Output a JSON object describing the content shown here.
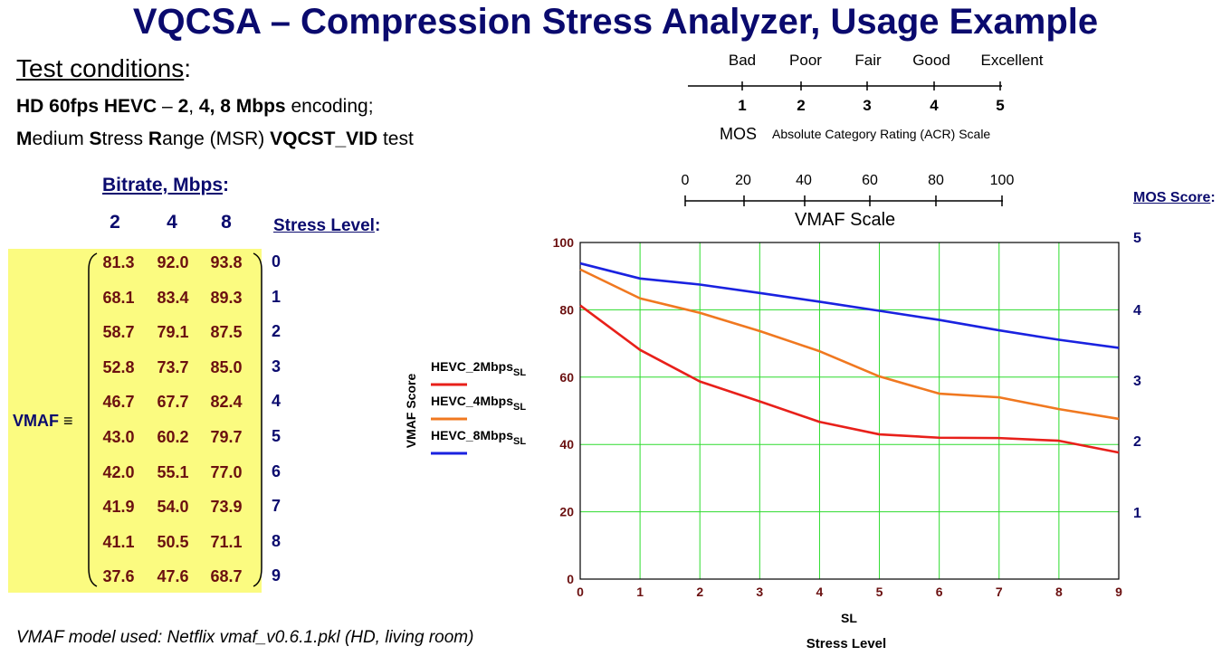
{
  "title": "VQCSA – Compression Stress Analyzer, Usage Example",
  "conditions": {
    "heading": "Test conditions",
    "heading_colon": ":",
    "line1": {
      "a": "HD 60fps HEVC",
      "b": " – ",
      "c": "2",
      "d": ", ",
      "e": "4, 8 Mbps",
      "f": " encoding;"
    },
    "line2": {
      "m": "M",
      "edium": "edium ",
      "s": "S",
      "tress": "tress ",
      "r": "R",
      "ange": "ange (MSR) ",
      "test_bold": "VQCST_VID",
      "test": " test"
    }
  },
  "matrix": {
    "bitrate_label": "Bitrate, Mbps",
    "bitrate_colon": ":",
    "columns": [
      "2",
      "4",
      "8"
    ],
    "stress_label": "Stress Level",
    "stress_colon": ":",
    "row_label": "VMAF",
    "equiv": "≡",
    "stress_levels": [
      "0",
      "1",
      "2",
      "3",
      "4",
      "5",
      "6",
      "7",
      "8",
      "9"
    ],
    "rows": [
      [
        "81.3",
        "92.0",
        "93.8"
      ],
      [
        "68.1",
        "83.4",
        "89.3"
      ],
      [
        "58.7",
        "79.1",
        "87.5"
      ],
      [
        "52.8",
        "73.7",
        "85.0"
      ],
      [
        "46.7",
        "67.7",
        "82.4"
      ],
      [
        "43.0",
        "60.2",
        "79.7"
      ],
      [
        "42.0",
        "55.1",
        "77.0"
      ],
      [
        "41.9",
        "54.0",
        "73.9"
      ],
      [
        "41.1",
        "50.5",
        "71.1"
      ],
      [
        "37.6",
        "47.6",
        "68.7"
      ]
    ]
  },
  "footer": "VMAF model used: Netflix vmaf_v0.6.1.pkl (HD, living room)",
  "mos_scale": {
    "categories": [
      "Bad",
      "Poor",
      "Fair",
      "Good",
      "Excellent"
    ],
    "numbers": [
      "1",
      "2",
      "3",
      "4",
      "5"
    ],
    "label": "MOS",
    "acr_label": "Absolute Category Rating (ACR) Scale"
  },
  "vmaf_scale": {
    "ticks": [
      "0",
      "20",
      "40",
      "60",
      "80",
      "100"
    ],
    "label": "VMAF Scale"
  },
  "mos_score_label": "MOS Score",
  "mos_score_colon": ":",
  "colors": {
    "title": "#0a0a6e",
    "matrix_bg": "#fbfb80",
    "value_text": "#6b1010",
    "grid": "#2ddc2d",
    "hevc_2": "#e8201a",
    "hevc_4": "#f07820",
    "hevc_8": "#1a22e0"
  },
  "chart_data": {
    "type": "line",
    "x": [
      0,
      1,
      2,
      3,
      4,
      5,
      6,
      7,
      8,
      9
    ],
    "x_ticks": [
      "0",
      "1",
      "2",
      "3",
      "4",
      "5",
      "6",
      "7",
      "8",
      "9"
    ],
    "xlabel": "SL",
    "xlabel2": "Stress Level",
    "ylabel": "VMAF Score",
    "ylim": [
      0,
      100
    ],
    "y_ticks": [
      "0",
      "20",
      "40",
      "60",
      "80",
      "100"
    ],
    "y2_label": "MOS Score",
    "y2_ticks": [
      "1",
      "2",
      "3",
      "4",
      "5"
    ],
    "grid": true,
    "legend_position": "left-outside",
    "series": [
      {
        "name": "HEVC_2Mbps",
        "subscript": "SL",
        "color": "#e8201a",
        "values": [
          81.3,
          68.1,
          58.7,
          52.8,
          46.7,
          43.0,
          42.0,
          41.9,
          41.1,
          37.6
        ]
      },
      {
        "name": "HEVC_4Mbps",
        "subscript": "SL",
        "color": "#f07820",
        "values": [
          92.0,
          83.4,
          79.1,
          73.7,
          67.7,
          60.2,
          55.1,
          54.0,
          50.5,
          47.6
        ]
      },
      {
        "name": "HEVC_8Mbps",
        "subscript": "SL",
        "color": "#1a22e0",
        "values": [
          93.8,
          89.3,
          87.5,
          85.0,
          82.4,
          79.7,
          77.0,
          73.9,
          71.1,
          68.7
        ]
      }
    ]
  }
}
